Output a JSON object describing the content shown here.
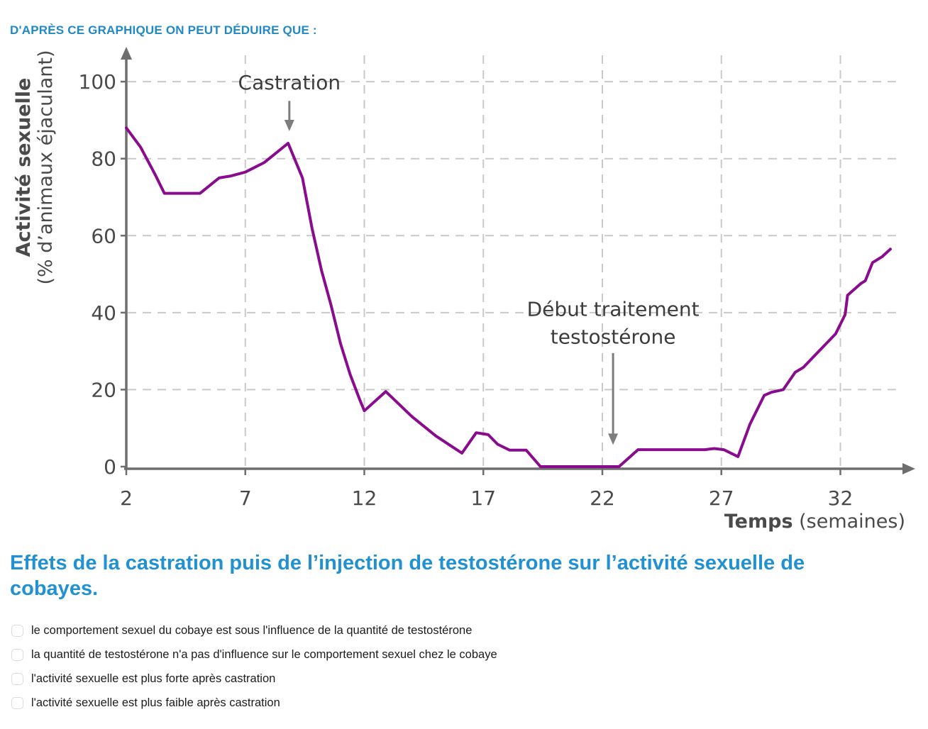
{
  "header": {
    "prompt": "D'APRÈS CE GRAPHIQUE ON PEUT DÉDUIRE QUE :"
  },
  "chart_data": {
    "type": "line",
    "xlabel_bold": "Temps",
    "xlabel_unit": " (semaines)",
    "ylabel_bold": "Activité sexuelle",
    "ylabel_unit": "(% d’animaux éjaculant)",
    "x_ticks": [
      2,
      7,
      12,
      17,
      22,
      27,
      32
    ],
    "y_ticks": [
      0,
      20,
      40,
      60,
      80,
      100
    ],
    "xlim": [
      2,
      35
    ],
    "ylim": [
      0,
      105
    ],
    "grid": true,
    "legend": "none",
    "series": [
      {
        "name": "activité sexuelle (% d'animaux éjaculant)",
        "points": [
          [
            2,
            88
          ],
          [
            2.6,
            83
          ],
          [
            3.2,
            76
          ],
          [
            3.6,
            71
          ],
          [
            5.1,
            71
          ],
          [
            5.9,
            75
          ],
          [
            6.4,
            75.5
          ],
          [
            7,
            76.5
          ],
          [
            7.8,
            79
          ],
          [
            8.8,
            84
          ],
          [
            9.4,
            75
          ],
          [
            9.8,
            62
          ],
          [
            10.2,
            51
          ],
          [
            10.6,
            42
          ],
          [
            11,
            32
          ],
          [
            11.4,
            24
          ],
          [
            11.8,
            17.5
          ],
          [
            12,
            14.5
          ],
          [
            12.9,
            19.5
          ],
          [
            14,
            13
          ],
          [
            15,
            8
          ],
          [
            16.1,
            3.5
          ],
          [
            16.7,
            8.8
          ],
          [
            17.2,
            8.3
          ],
          [
            17.6,
            5.8
          ],
          [
            18.1,
            4.3
          ],
          [
            18.8,
            4.3
          ],
          [
            19.4,
            0
          ],
          [
            22.7,
            0
          ],
          [
            23.5,
            4.4
          ],
          [
            26.3,
            4.4
          ],
          [
            26.7,
            4.7
          ],
          [
            27.1,
            4.4
          ],
          [
            27.7,
            2.6
          ],
          [
            28.2,
            11
          ],
          [
            28.8,
            18.5
          ],
          [
            29.1,
            19.3
          ],
          [
            29.6,
            20
          ],
          [
            30.1,
            24.5
          ],
          [
            30.45,
            25.8
          ],
          [
            31.1,
            30
          ],
          [
            31.8,
            34.5
          ],
          [
            32.2,
            39.5
          ],
          [
            32.3,
            44.5
          ],
          [
            32.85,
            47.5
          ],
          [
            33.05,
            48.3
          ],
          [
            33.35,
            53
          ],
          [
            33.75,
            54.5
          ],
          [
            34.1,
            56.5
          ]
        ]
      }
    ],
    "annotations": [
      {
        "lines": [
          "Castration"
        ],
        "x_week": 8.85,
        "last_line_baseline_value": 98,
        "arrow_from_value": 95,
        "arrow_to_value": 87.5
      },
      {
        "lines": [
          "Début traitement",
          "testostérone"
        ],
        "x_week": 22.45,
        "last_line_baseline_value": 32,
        "arrow_from_value": 29.5,
        "arrow_to_value": 6
      }
    ]
  },
  "caption": {
    "text": "Effets de la castration puis de l’injection de testostérone sur l’activité sexuelle de cobayes."
  },
  "options": [
    {
      "label": "le comportement sexuel du cobaye est sous l'influence de la quantité de testostérone",
      "checked": false
    },
    {
      "label": "la quantité de testostérone n'a pas d'influence sur le comportement sexuel chez le cobaye",
      "checked": false
    },
    {
      "label": "l'activité sexuelle est plus forte après castration",
      "checked": false
    },
    {
      "label": "l'activité sexuelle est plus faible après castration",
      "checked": false
    }
  ],
  "colors": {
    "accent_header": "#2089c5",
    "accent_caption": "#2191d1",
    "line": "#8a0c8e",
    "axis": "#6e6e6e",
    "grid": "#c9c9c9",
    "tick_text": "#4a4a4a",
    "annotation_text": "#3c3c3c",
    "arrow": "#7d7d7d",
    "option_text": "#1c1c1c",
    "checkbox_border": "#dcdcdc"
  }
}
